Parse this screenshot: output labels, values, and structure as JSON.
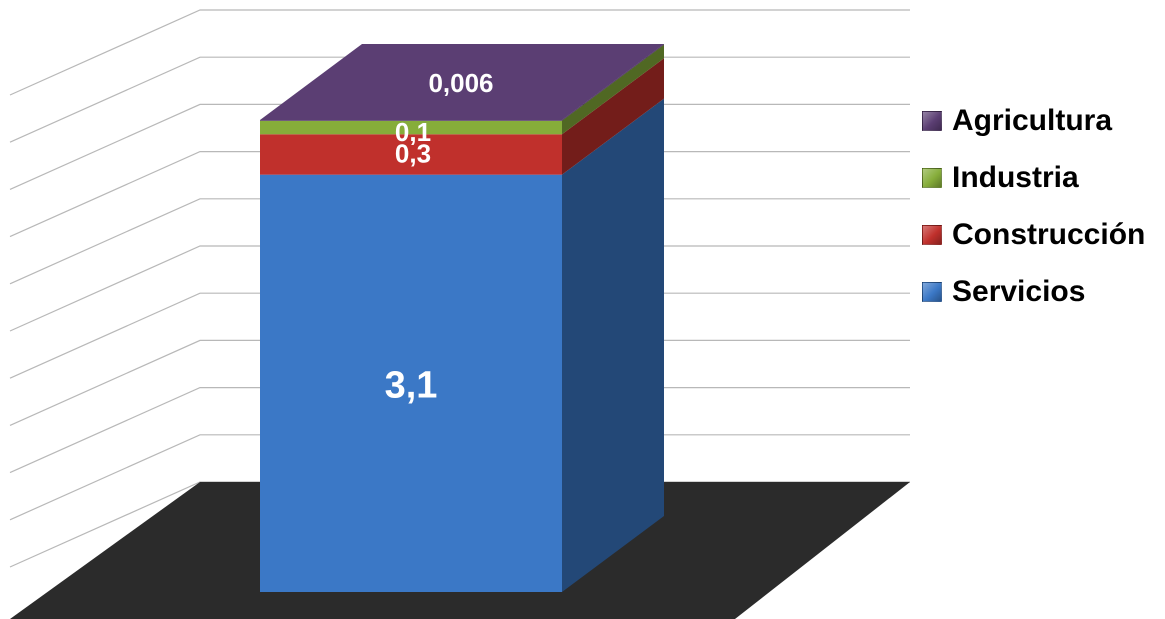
{
  "chart_data": {
    "type": "bar",
    "stacked": true,
    "three_d": true,
    "series": [
      {
        "name": "Servicios",
        "values": [
          3.1
        ],
        "label": "3,1",
        "color": "#3B78C6"
      },
      {
        "name": "Construcción",
        "values": [
          0.3
        ],
        "label": "0,3",
        "color": "#C0302C"
      },
      {
        "name": "Industria",
        "values": [
          0.1
        ],
        "label": "0,1",
        "color": "#86AD3A"
      },
      {
        "name": "Agricultura",
        "values": [
          0.006
        ],
        "label": "0,006",
        "color": "#5B3E73"
      }
    ],
    "legend_order": [
      "Agricultura",
      "Industria",
      "Construcción",
      "Servicios"
    ],
    "legend_position": "right",
    "grid": true,
    "floor_color": "#2B2B2B"
  }
}
